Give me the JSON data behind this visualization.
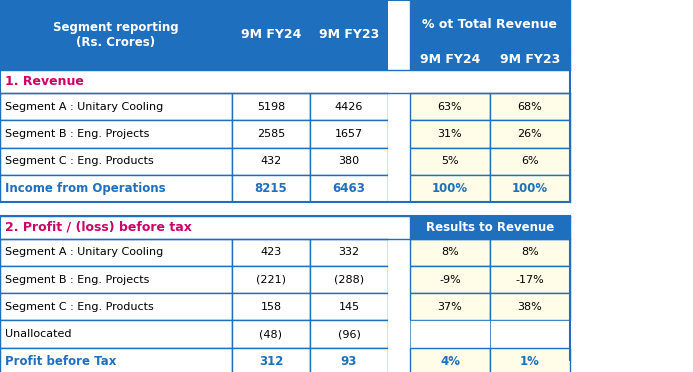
{
  "header_bg": "#1F6FBF",
  "header_text_color": "#FFFFFF",
  "section_label_color": "#CC0066",
  "total_row_color": "#1F6FBF",
  "data_bg": "#FFFDE7",
  "white_bg": "#FFFFFF",
  "border_color": "#1F6FBF",
  "section1_label": "1. Revenue",
  "section2_label": "2. Profit / (loss) before tax",
  "col_header1": "Segment reporting\n(Rs. Crores)",
  "col_header2": "9M FY24",
  "col_header3": "9M FY23",
  "col_header4": "% ot Total Revenue",
  "col_header5": "9M FY24",
  "col_header6": "9M FY23",
  "col_header7": "Results to Revenue",
  "revenue_rows": [
    [
      "Segment A : Unitary Cooling",
      "5198",
      "4426",
      "63%",
      "68%"
    ],
    [
      "Segment B : Eng. Projects",
      "2585",
      "1657",
      "31%",
      "26%"
    ],
    [
      "Segment C : Eng. Products",
      "432",
      "380",
      "5%",
      "6%"
    ]
  ],
  "revenue_total": [
    "Income from Operations",
    "8215",
    "6463",
    "100%",
    "100%"
  ],
  "profit_rows": [
    [
      "Segment A : Unitary Cooling",
      "423",
      "332",
      "8%",
      "8%"
    ],
    [
      "Segment B : Eng. Projects",
      "(221)",
      "(288)",
      "-9%",
      "-17%"
    ],
    [
      "Segment C : Eng. Products",
      "158",
      "145",
      "37%",
      "38%"
    ],
    [
      "Unallocated",
      "(48)",
      "(96)",
      "",
      ""
    ]
  ],
  "profit_total": [
    "Profit before Tax",
    "312",
    "93",
    "4%",
    "1%"
  ]
}
